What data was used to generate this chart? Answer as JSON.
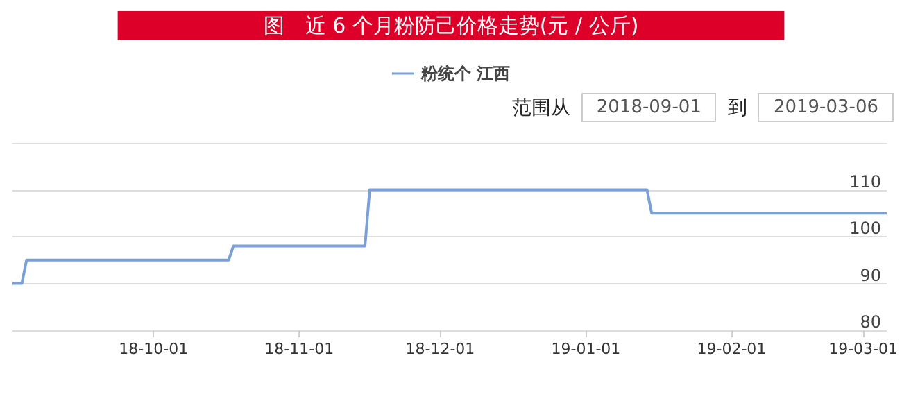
{
  "chart_data": {
    "type": "line",
    "title": "图　近 6 个月粉防己价格走势(元 / 公斤)",
    "annotations": [
      "范围从",
      "2018-09-01",
      "到",
      "2019-03-06"
    ],
    "x": [
      "2018-09-01",
      "2018-09-03",
      "2018-09-04",
      "2018-10-17",
      "2018-10-18",
      "2018-11-15",
      "2018-11-16",
      "2019-01-14",
      "2019-01-15",
      "2019-03-06"
    ],
    "series": [
      {
        "name": "粉统个 江西",
        "color": "#7ba0d7",
        "values": [
          90,
          90,
          95,
          95,
          98,
          98,
          110,
          110,
          105,
          105
        ]
      }
    ],
    "xlim": [
      "2018-09-01",
      "2019-03-06"
    ],
    "xticks": [
      {
        "value": "2018-10-01",
        "label": "18-10-01"
      },
      {
        "value": "2018-11-01",
        "label": "18-11-01"
      },
      {
        "value": "2018-12-01",
        "label": "18-12-01"
      },
      {
        "value": "2019-01-01",
        "label": "19-01-01"
      },
      {
        "value": "2019-02-01",
        "label": "19-02-01"
      },
      {
        "value": "2019-03-01",
        "label": "19-03-01"
      }
    ],
    "ylim": [
      80,
      120
    ],
    "yticks": [
      80,
      90,
      100,
      110,
      {
        "value": 120,
        "label": null
      }
    ],
    "grid": "y",
    "legend": "top",
    "marker": "none",
    "line_style": "solid"
  }
}
